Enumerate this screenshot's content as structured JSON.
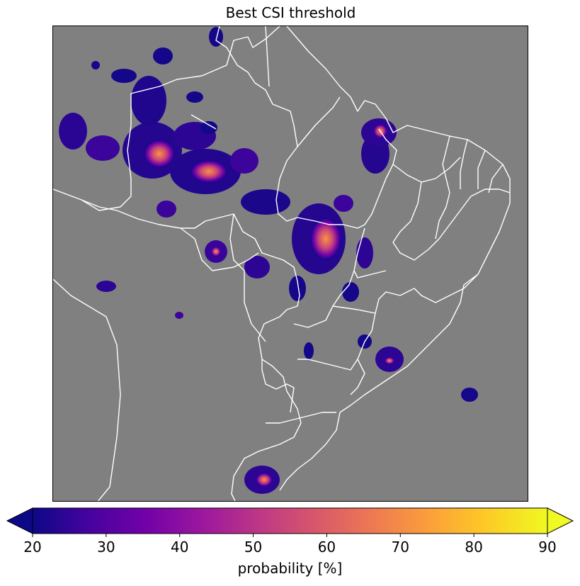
{
  "title": "Best CSI threshold",
  "map": {
    "background_color": "#808080",
    "border_color": "#ffffff",
    "colormap": "plasma",
    "region": "Brazil"
  },
  "colorbar": {
    "label": "probability [%]",
    "ticks": [
      "20",
      "30",
      "40",
      "50",
      "60",
      "70",
      "80",
      "90"
    ],
    "min": 20,
    "max": 90,
    "extend": "both",
    "colors": [
      "#0d0887",
      "#46039f",
      "#7201a8",
      "#9c179e",
      "#bd3786",
      "#d8576b",
      "#ed7953",
      "#fb9f3a",
      "#fdca26",
      "#f0f921"
    ]
  }
}
